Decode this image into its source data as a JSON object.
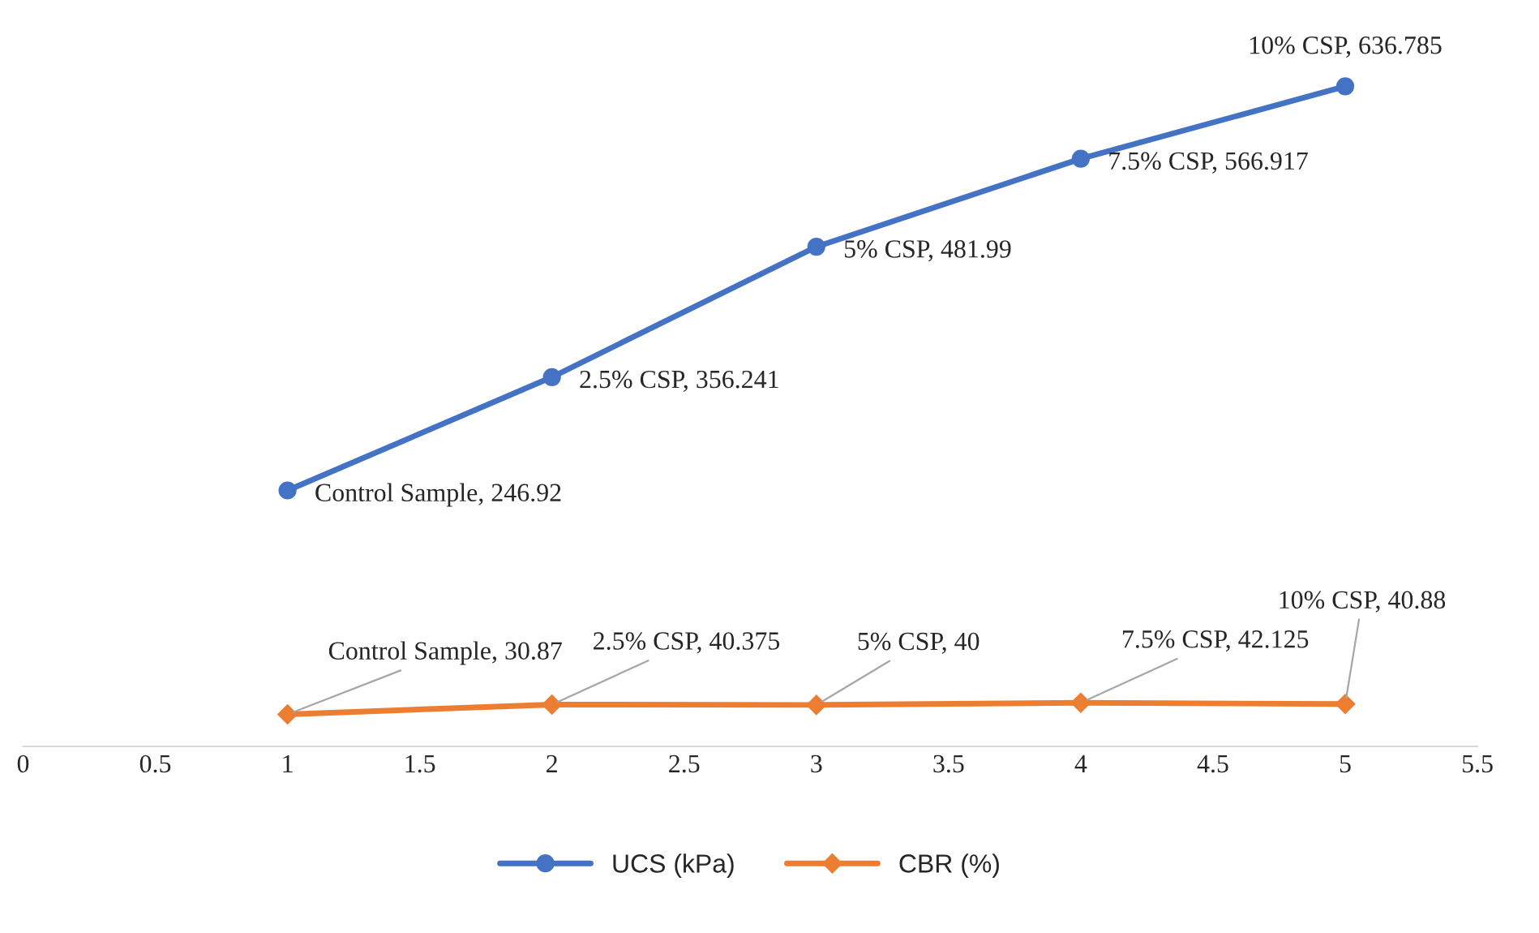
{
  "chart_data": {
    "type": "line",
    "x": [
      1,
      2,
      3,
      4,
      5
    ],
    "xlim": [
      0,
      5.5
    ],
    "xticks": [
      0,
      0.5,
      1,
      1.5,
      2,
      2.5,
      3,
      3.5,
      4,
      4.5,
      5,
      5.5
    ],
    "tick_labels": "x",
    "grid": false,
    "legend": "bottom",
    "series": [
      {
        "name": "UCS (kPa)",
        "color": "#4472c4",
        "marker": "circle",
        "values": [
          246.92,
          356.241,
          481.99,
          566.917,
          636.785
        ],
        "value_labels": [
          "Control Sample, 246.92",
          "2.5% CSP, 356.241",
          "5% CSP, 481.99",
          "7.5% CSP, 566.917",
          "10% CSP, 636.785"
        ]
      },
      {
        "name": "CBR (%)",
        "color": "#ed7d31",
        "marker": "diamond",
        "values": [
          30.87,
          40.375,
          40,
          42.125,
          40.88
        ],
        "value_labels": [
          "Control Sample, 30.87",
          "2.5% CSP, 40.375",
          "5% CSP, 40",
          "7.5% CSP, 42.125",
          "10% CSP, 40.88"
        ]
      }
    ]
  }
}
